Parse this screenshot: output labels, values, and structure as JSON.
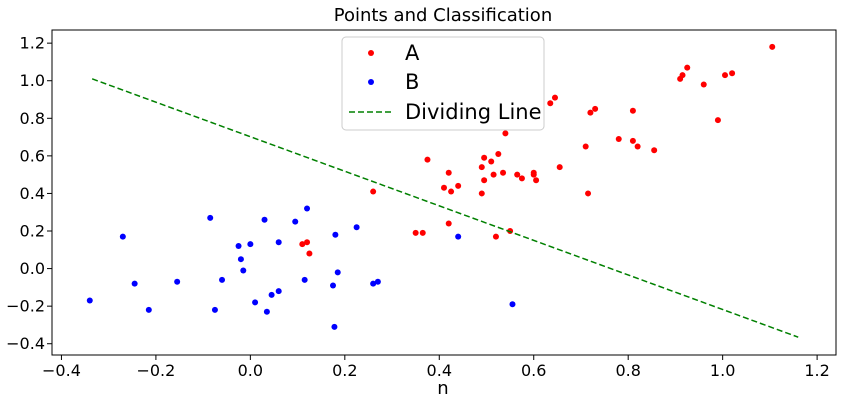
{
  "chart_data": {
    "type": "scatter",
    "title": "Points and Classification",
    "xlabel": "n",
    "ylabel": "",
    "xlim": [
      -0.42,
      1.24
    ],
    "ylim": [
      -0.46,
      1.27
    ],
    "xticks": [
      -0.4,
      -0.2,
      0.0,
      0.2,
      0.4,
      0.6,
      0.8,
      1.0,
      1.2
    ],
    "xtick_labels": [
      "−0.4",
      "−0.2",
      "0.0",
      "0.2",
      "0.4",
      "0.6",
      "0.8",
      "1.0",
      "1.2"
    ],
    "yticks": [
      -0.4,
      -0.2,
      0.0,
      0.2,
      0.4,
      0.6,
      0.8,
      1.0,
      1.2
    ],
    "ytick_labels": [
      "−0.4",
      "−0.2",
      "0.0",
      "0.2",
      "0.4",
      "0.6",
      "0.8",
      "1.0",
      "1.2"
    ],
    "grid": false,
    "legend_position": "top-center",
    "series": [
      {
        "name": "A",
        "kind": "points",
        "color": "#ff0000",
        "points": [
          [
            0.11,
            0.13
          ],
          [
            0.12,
            0.14
          ],
          [
            0.125,
            0.08
          ],
          [
            0.26,
            0.41
          ],
          [
            0.35,
            0.19
          ],
          [
            0.365,
            0.19
          ],
          [
            0.375,
            0.58
          ],
          [
            0.41,
            0.43
          ],
          [
            0.42,
            0.51
          ],
          [
            0.42,
            0.24
          ],
          [
            0.425,
            0.41
          ],
          [
            0.44,
            0.44
          ],
          [
            0.49,
            0.54
          ],
          [
            0.49,
            0.4
          ],
          [
            0.495,
            0.59
          ],
          [
            0.495,
            0.47
          ],
          [
            0.51,
            0.57
          ],
          [
            0.515,
            0.5
          ],
          [
            0.52,
            0.17
          ],
          [
            0.525,
            0.61
          ],
          [
            0.535,
            0.51
          ],
          [
            0.54,
            0.72
          ],
          [
            0.55,
            0.2
          ],
          [
            0.565,
            0.5
          ],
          [
            0.575,
            0.48
          ],
          [
            0.6,
            0.51
          ],
          [
            0.6,
            0.5
          ],
          [
            0.605,
            0.47
          ],
          [
            0.635,
            0.88
          ],
          [
            0.645,
            0.91
          ],
          [
            0.655,
            0.54
          ],
          [
            0.71,
            0.65
          ],
          [
            0.715,
            0.4
          ],
          [
            0.72,
            0.83
          ],
          [
            0.73,
            0.85
          ],
          [
            0.78,
            0.69
          ],
          [
            0.81,
            0.68
          ],
          [
            0.81,
            0.84
          ],
          [
            0.82,
            0.65
          ],
          [
            0.855,
            0.63
          ],
          [
            0.91,
            1.01
          ],
          [
            0.915,
            1.03
          ],
          [
            0.925,
            1.07
          ],
          [
            0.96,
            0.98
          ],
          [
            0.99,
            0.79
          ],
          [
            1.005,
            1.03
          ],
          [
            1.02,
            1.04
          ],
          [
            1.105,
            1.18
          ]
        ]
      },
      {
        "name": "B",
        "kind": "points",
        "color": "#0000ff",
        "points": [
          [
            -0.34,
            -0.17
          ],
          [
            -0.27,
            0.17
          ],
          [
            -0.245,
            -0.08
          ],
          [
            -0.215,
            -0.22
          ],
          [
            -0.155,
            -0.07
          ],
          [
            -0.085,
            0.27
          ],
          [
            -0.075,
            -0.22
          ],
          [
            -0.06,
            -0.06
          ],
          [
            -0.025,
            0.12
          ],
          [
            -0.02,
            0.05
          ],
          [
            -0.015,
            -0.01
          ],
          [
            0.0,
            0.13
          ],
          [
            0.01,
            -0.18
          ],
          [
            0.03,
            0.26
          ],
          [
            0.035,
            -0.23
          ],
          [
            0.045,
            -0.14
          ],
          [
            0.06,
            -0.12
          ],
          [
            0.06,
            0.14
          ],
          [
            0.095,
            0.25
          ],
          [
            0.115,
            -0.06
          ],
          [
            0.12,
            0.32
          ],
          [
            0.175,
            -0.09
          ],
          [
            0.178,
            -0.31
          ],
          [
            0.18,
            0.18
          ],
          [
            0.185,
            -0.02
          ],
          [
            0.225,
            0.22
          ],
          [
            0.26,
            -0.08
          ],
          [
            0.27,
            -0.07
          ],
          [
            0.44,
            0.17
          ],
          [
            0.555,
            -0.19
          ]
        ]
      },
      {
        "name": "Dividing Line",
        "kind": "dashed-line",
        "color": "#008000",
        "points": [
          [
            -0.335,
            1.01
          ],
          [
            1.16,
            -0.365
          ]
        ]
      }
    ]
  }
}
